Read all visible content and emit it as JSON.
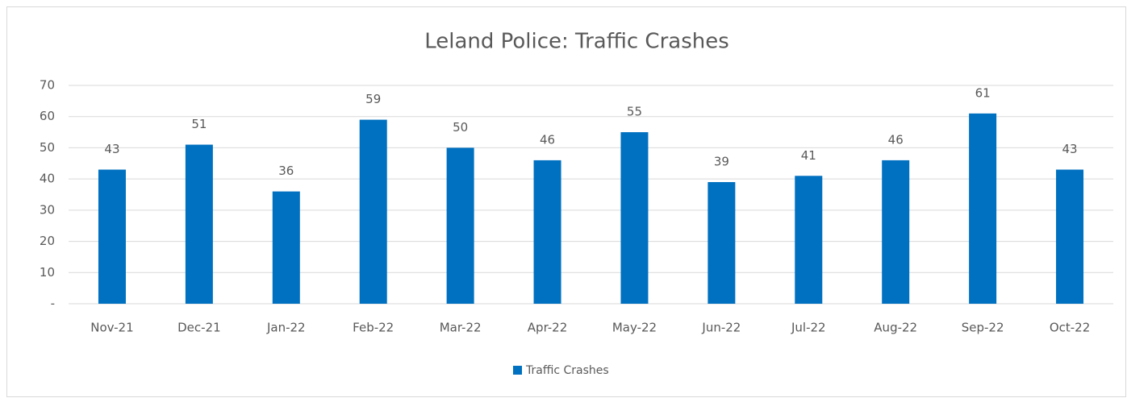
{
  "chart_data": {
    "type": "bar",
    "title": "Leland Police: Traffic Crashes",
    "categories": [
      "Nov-21",
      "Dec-21",
      "Jan-22",
      "Feb-22",
      "Mar-22",
      "Apr-22",
      "May-22",
      "Jun-22",
      "Jul-22",
      "Aug-22",
      "Sep-22",
      "Oct-22"
    ],
    "series": [
      {
        "name": "Traffic Crashes",
        "color": "#0070c0",
        "values": [
          43,
          51,
          36,
          59,
          50,
          46,
          55,
          39,
          41,
          46,
          61,
          43
        ]
      }
    ],
    "ylim": [
      0,
      70
    ],
    "yticks": [
      {
        "value": 0,
        "label": "-"
      },
      10,
      20,
      30,
      40,
      50,
      60,
      70
    ],
    "grid": true,
    "legend": "bottom"
  }
}
